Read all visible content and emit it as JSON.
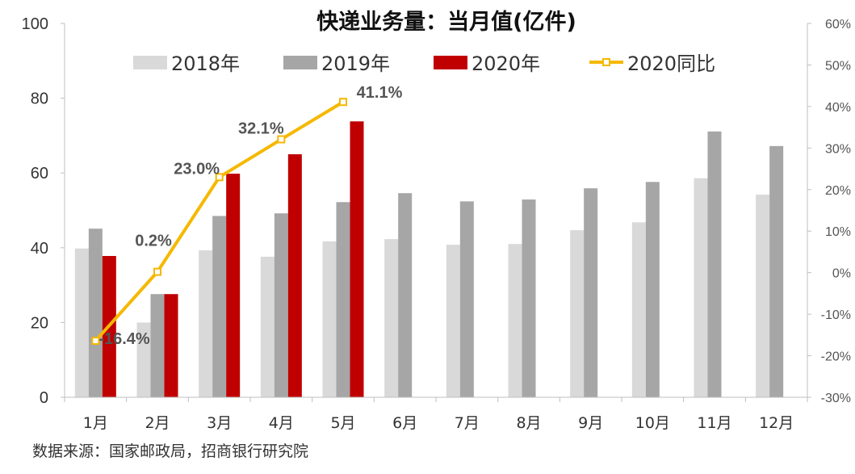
{
  "chart_data": {
    "type": "bar",
    "title": "快递业务量：当月值(亿件)",
    "categories": [
      "1月",
      "2月",
      "3月",
      "4月",
      "5月",
      "6月",
      "7月",
      "8月",
      "9月",
      "10月",
      "11月",
      "12月"
    ],
    "series": [
      {
        "name": "2018年",
        "color": "#d9d9d9",
        "values": [
          39.8,
          20.0,
          39.3,
          37.6,
          41.7,
          42.3,
          40.8,
          41.0,
          44.7,
          46.8,
          58.6,
          54.2
        ]
      },
      {
        "name": "2019年",
        "color": "#a6a6a6",
        "values": [
          45.1,
          27.6,
          48.5,
          49.2,
          52.2,
          54.6,
          52.4,
          52.9,
          55.9,
          57.6,
          71.1,
          67.2
        ]
      },
      {
        "name": "2020年",
        "color": "#c00000",
        "values": [
          37.8,
          27.6,
          59.8,
          65.0,
          73.8,
          null,
          null,
          null,
          null,
          null,
          null,
          null
        ]
      }
    ],
    "line_series": {
      "name": "2020同比",
      "color": "#f5b800",
      "axis": "right",
      "values": [
        -16.4,
        0.2,
        23.0,
        32.1,
        41.1
      ],
      "labels": [
        "-16.4%",
        "0.2%",
        "23.0%",
        "32.1%",
        "41.1%"
      ]
    },
    "y_left": {
      "ylim": [
        0,
        100
      ],
      "ticks": [
        "0",
        "20",
        "40",
        "60",
        "80",
        "100"
      ]
    },
    "y_right": {
      "ylim": [
        -30,
        60
      ],
      "ticks": [
        "-30%",
        "-20%",
        "-10%",
        "0%",
        "10%",
        "20%",
        "30%",
        "40%",
        "50%",
        "60%"
      ]
    },
    "source": "数据来源：国家邮政局，招商银行研究院"
  }
}
